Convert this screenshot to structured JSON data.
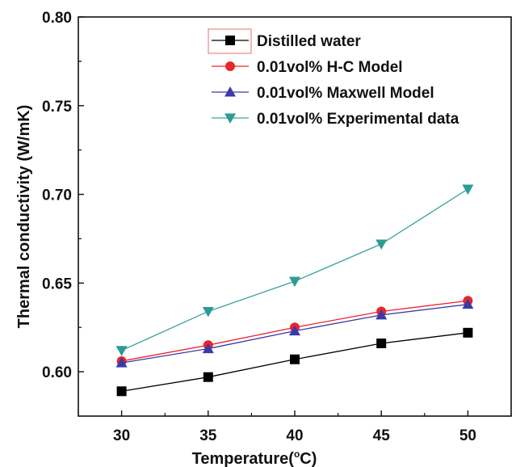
{
  "chart_data": {
    "type": "line",
    "title": "",
    "xlabel_prefix": "Temperature(",
    "xlabel_degree": "o",
    "xlabel_suffix": "C)",
    "ylabel": "Thermal conductivity (W/mK)",
    "x": [
      30,
      35,
      40,
      45,
      50
    ],
    "xlim": [
      27.5,
      52.5
    ],
    "ylim": [
      0.575,
      0.8
    ],
    "x_ticks": [
      30,
      35,
      40,
      45,
      50
    ],
    "x_tick_labels": [
      "30",
      "35",
      "40",
      "45",
      "50"
    ],
    "y_ticks": [
      0.6,
      0.65,
      0.7,
      0.75,
      0.8
    ],
    "y_tick_labels": [
      "0.60",
      "0.65",
      "0.70",
      "0.75",
      "0.80"
    ],
    "grid": false,
    "legend_position": "top-right",
    "series": [
      {
        "name": "Distilled water",
        "marker": "square",
        "color": "#000000",
        "line_color": "#000000",
        "values": [
          0.589,
          0.597,
          0.607,
          0.616,
          0.622
        ]
      },
      {
        "name": "0.01vol% H-C Model",
        "marker": "circle",
        "color": "#e8262a",
        "line_color": "#e8262a",
        "values": [
          0.606,
          0.615,
          0.625,
          0.634,
          0.64
        ]
      },
      {
        "name": "0.01vol% Maxwell Model",
        "marker": "triangle-up",
        "color": "#3a3aa8",
        "line_color": "#3a3aa8",
        "values": [
          0.605,
          0.613,
          0.623,
          0.632,
          0.638
        ]
      },
      {
        "name": "0.01vol% Experimental data",
        "marker": "triangle-down",
        "color": "#2e9a94",
        "line_color": "#3aa39c",
        "values": [
          0.612,
          0.634,
          0.651,
          0.672,
          0.703
        ]
      }
    ]
  }
}
